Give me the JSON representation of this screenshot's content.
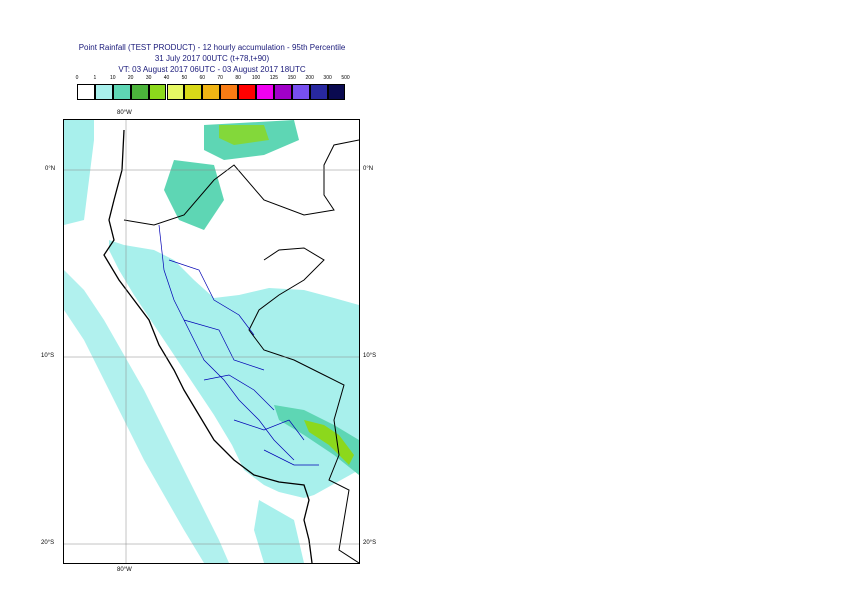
{
  "title": {
    "line1": "Point Rainfall (TEST PRODUCT) - 12 hourly accumulation - 95th Percentile",
    "line2": "31 July 2017 00UTC (t+78,t+90)",
    "line3": "VT: 03 August 2017 06UTC - 03 August 2017 18UTC"
  },
  "legend": {
    "thresholds": [
      "0",
      "1",
      "10",
      "20",
      "30",
      "40",
      "50",
      "60",
      "70",
      "80",
      "100",
      "125",
      "150",
      "200",
      "300",
      "500"
    ],
    "colors": [
      "#ffffff",
      "#a8f0ec",
      "#5ed6b4",
      "#4cb43c",
      "#8cd81c",
      "#e6f864",
      "#d8d818",
      "#f0b414",
      "#f87c14",
      "#ff0000",
      "#f000f0",
      "#a000c8",
      "#7850f0",
      "#2828a0",
      "#0a0a50"
    ]
  },
  "axes": {
    "lon_top": "80°W",
    "lon_bottom": "80°W",
    "lat_0_left": "0°N",
    "lat_0_right": "0°N",
    "lat_10_left": "10°S",
    "lat_10_right": "10°S",
    "lat_20_left": "20°S",
    "lat_20_right": "20°S"
  },
  "map": {
    "ocean_color": "#ffffff",
    "light_rain_color": "#a8f0ec",
    "moderate_rain_color": "#5ed6b4",
    "heavy_rain_color": "#8cd81c",
    "coast_color": "#000000",
    "admin_color": "#0000b4"
  }
}
